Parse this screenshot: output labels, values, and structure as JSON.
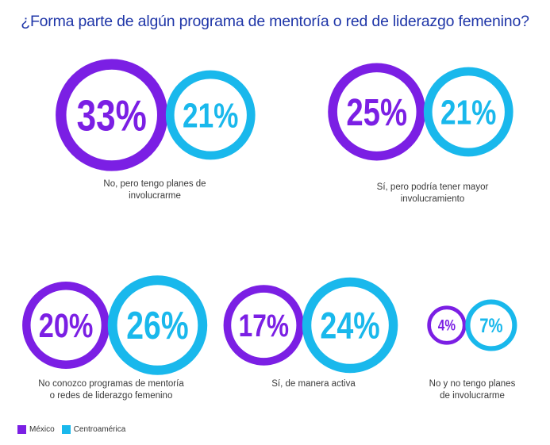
{
  "colors": {
    "mexico": "#7b1fe4",
    "centroamerica": "#19b8ec",
    "title": "#1f36a8"
  },
  "chart_data": {
    "type": "bubble",
    "title": "¿Forma parte de algún programa de mentoría o red de liderazgo femenino?",
    "series": [
      {
        "name": "México",
        "color": "#7b1fe4"
      },
      {
        "name": "Centroamérica",
        "color": "#19b8ec"
      }
    ],
    "groups": [
      {
        "label": "No, pero tengo planes de involucrarme",
        "mexico": 33,
        "centroamerica": 21
      },
      {
        "label": "Sí, pero podría tener mayor involucramiento",
        "mexico": 25,
        "centroamerica": 21
      },
      {
        "label": "No conozco programas de mentoría o redes de liderazgo femenino",
        "mexico": 20,
        "centroamerica": 26
      },
      {
        "label": "Sí, de manera activa",
        "mexico": 17,
        "centroamerica": 24
      },
      {
        "label": "No y no tengo planes de involucrarme",
        "mexico": 4,
        "centroamerica": 7
      }
    ],
    "value_labels": {
      "g0": {
        "mexico": "33%",
        "centroamerica": "21%",
        "line1": "No, pero tengo planes de",
        "line2": "involucrarme"
      },
      "g1": {
        "mexico": "25%",
        "centroamerica": "21%",
        "line1": "Sí, pero podría tener mayor",
        "line2": "involucramiento"
      },
      "g2": {
        "mexico": "20%",
        "centroamerica": "26%",
        "line1": "No conozco programas de mentoría",
        "line2": "o redes de liderazgo femenino"
      },
      "g3": {
        "mexico": "17%",
        "centroamerica": "24%",
        "line1": "Sí, de manera activa",
        "line2": ""
      },
      "g4": {
        "mexico": "4%",
        "centroamerica": "7%",
        "line1": "No y no tengo planes",
        "line2": "de involucrarme"
      }
    },
    "legend": [
      "México",
      "Centroamérica"
    ],
    "legend_position": "bottom-left"
  }
}
